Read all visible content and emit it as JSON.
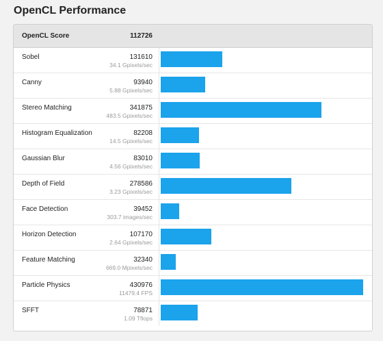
{
  "page": {
    "title": "OpenCL Performance"
  },
  "header": {
    "label": "OpenCL Score",
    "score": "112726"
  },
  "colors": {
    "bar": "#1ba3ec",
    "header_bg": "#e5e5e5"
  },
  "max_score": 430976,
  "rows": [
    {
      "name": "Sobel",
      "score": 131610,
      "sub": "34.1 Gpixels/sec"
    },
    {
      "name": "Canny",
      "score": 93940,
      "sub": "5.88 Gpixels/sec"
    },
    {
      "name": "Stereo Matching",
      "score": 341875,
      "sub": "483.5 Gpixels/sec"
    },
    {
      "name": "Histogram Equalization",
      "score": 82208,
      "sub": "14.5 Gpixels/sec"
    },
    {
      "name": "Gaussian Blur",
      "score": 83010,
      "sub": "4.56 Gpixels/sec"
    },
    {
      "name": "Depth of Field",
      "score": 278586,
      "sub": "3.23 Gpixels/sec"
    },
    {
      "name": "Face Detection",
      "score": 39452,
      "sub": "303.7 images/sec"
    },
    {
      "name": "Horizon Detection",
      "score": 107170,
      "sub": "2.64 Gpixels/sec"
    },
    {
      "name": "Feature Matching",
      "score": 32340,
      "sub": "669.0 Mpixels/sec"
    },
    {
      "name": "Particle Physics",
      "score": 430976,
      "sub": "11479.4 FPS"
    },
    {
      "name": "SFFT",
      "score": 78871,
      "sub": "1.09 Tflops"
    }
  ]
}
